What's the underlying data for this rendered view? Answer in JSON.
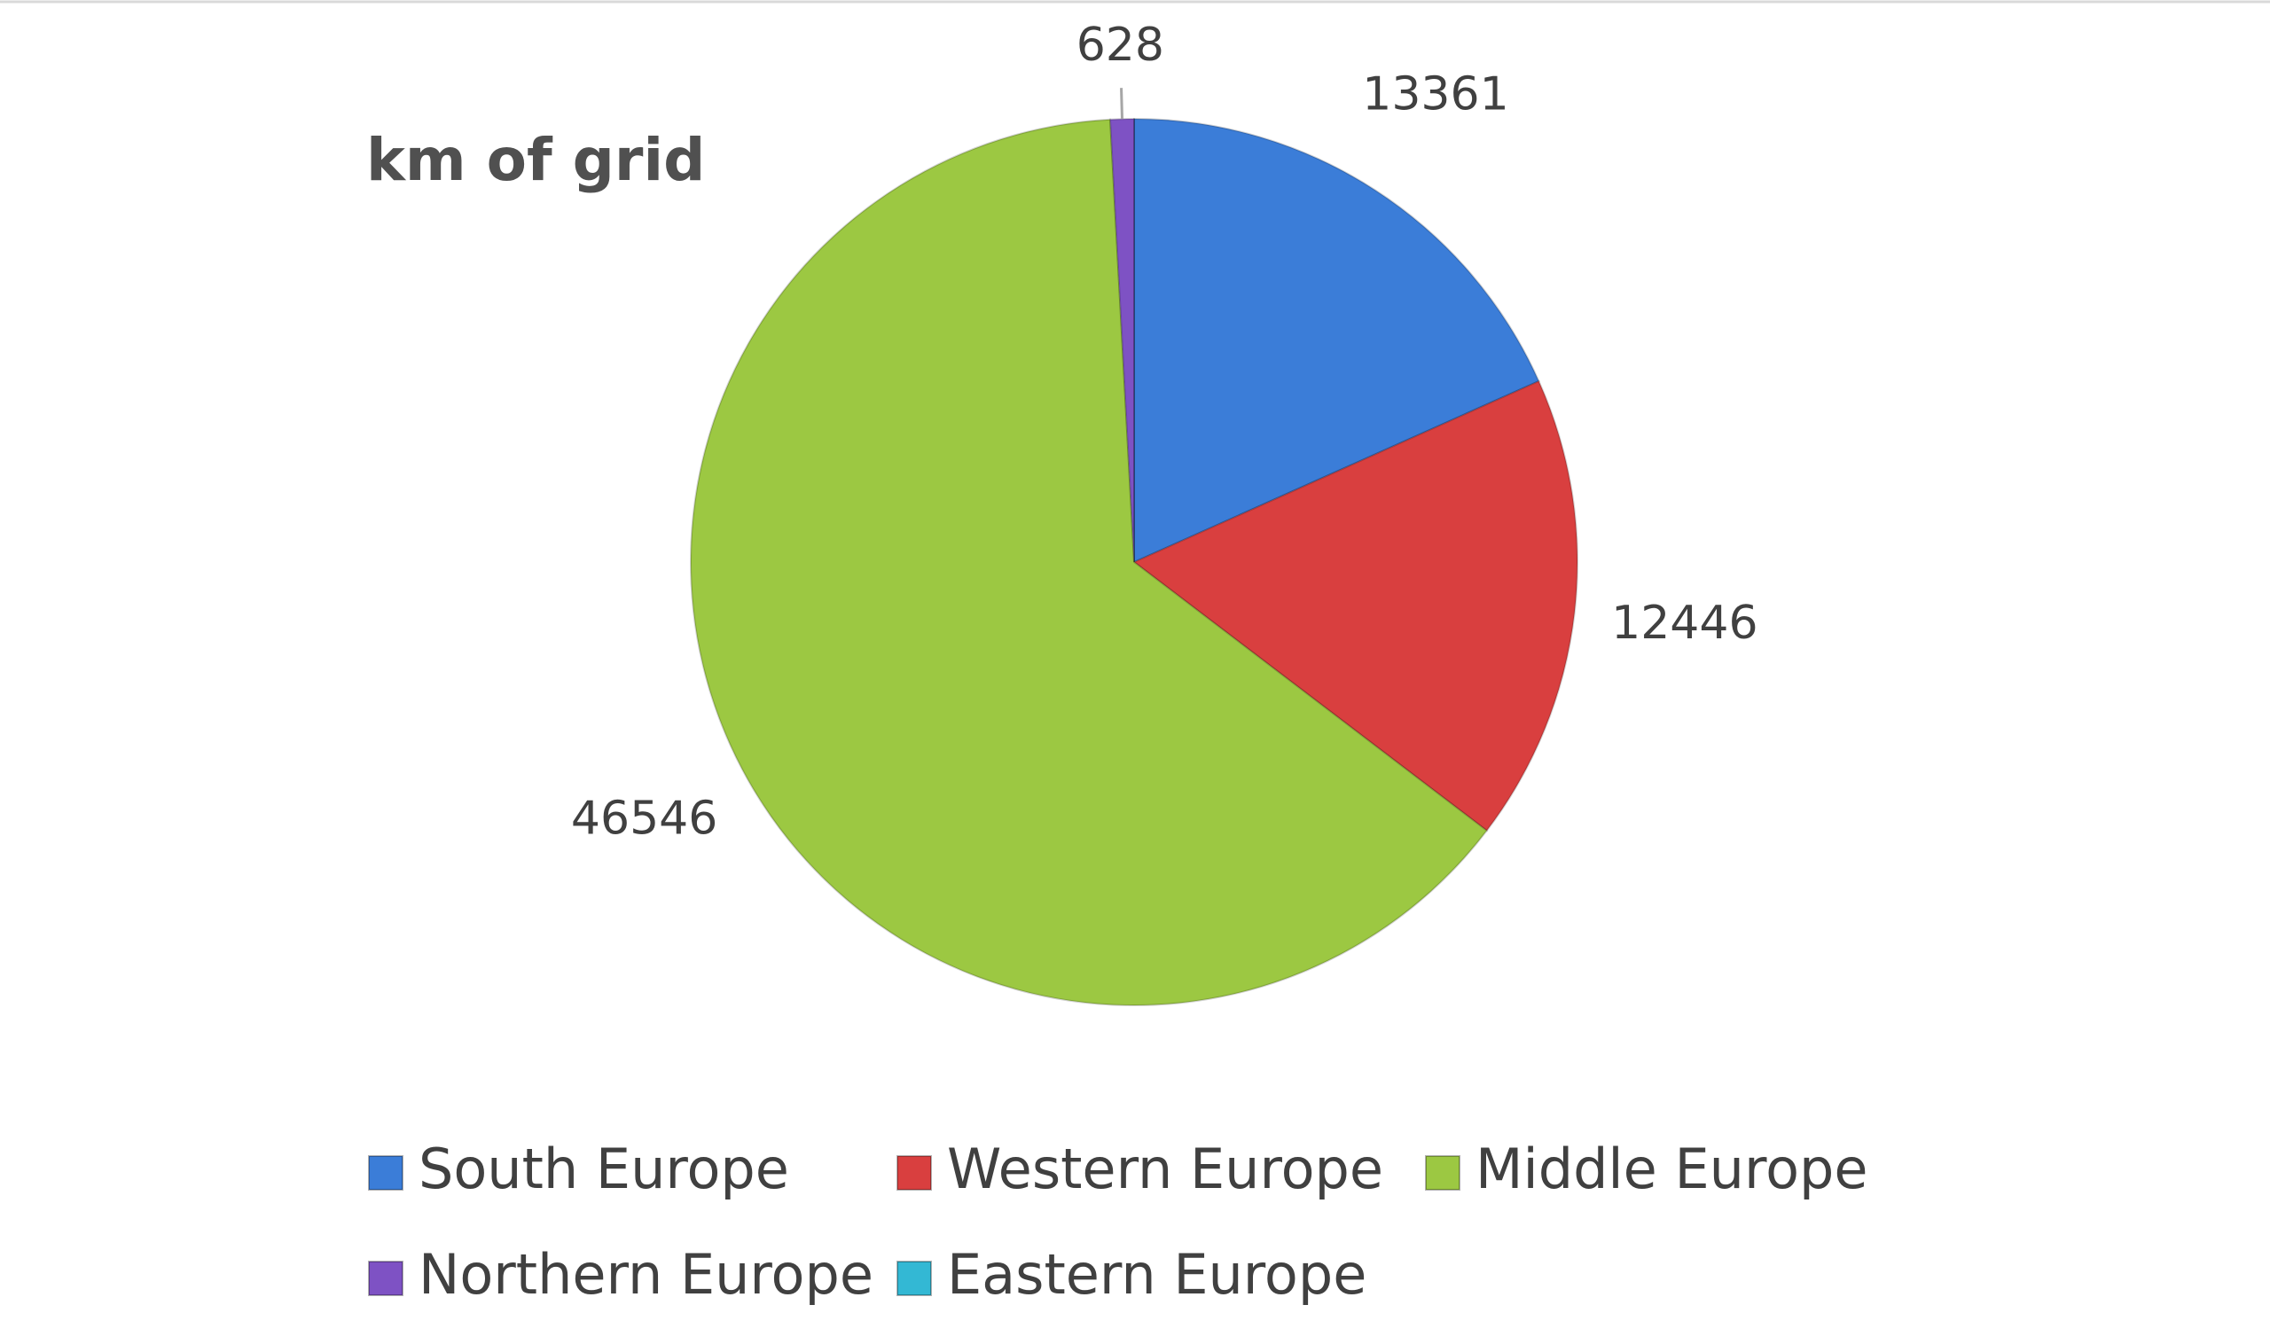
{
  "chart_data": {
    "type": "pie",
    "title": "km of grid",
    "categories": [
      "South Europe",
      "Western Europe",
      "Middle Europe",
      "Northern Europe",
      "Eastern Europe"
    ],
    "values": [
      13361,
      12446,
      46546,
      628,
      0
    ],
    "colors": [
      "#3b7dd8",
      "#d93f3f",
      "#9cc842",
      "#7e52c4",
      "#33b8d4"
    ],
    "legend": "bottom"
  }
}
